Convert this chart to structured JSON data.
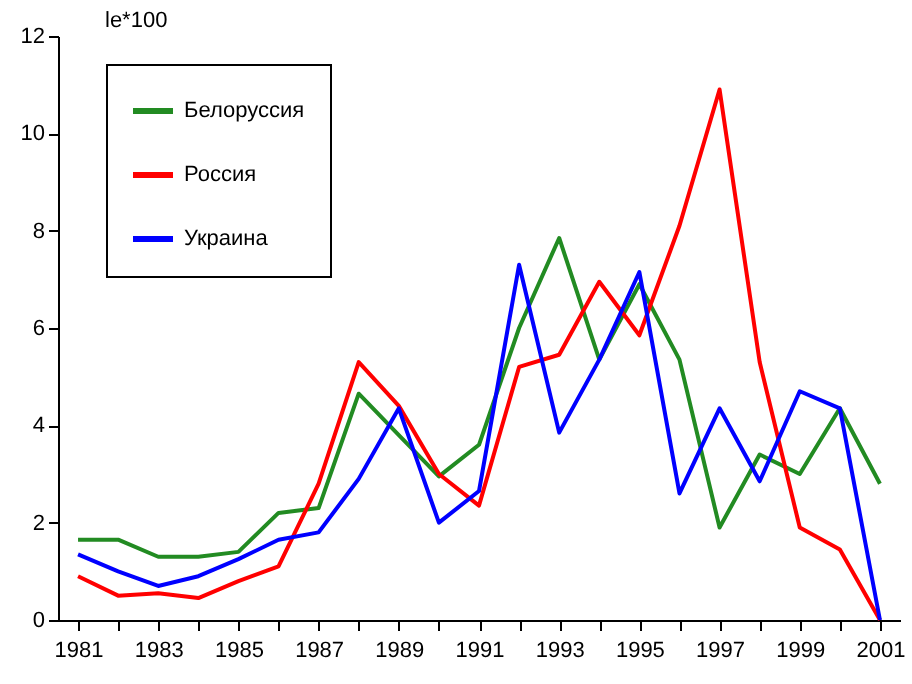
{
  "chart_data": {
    "type": "line",
    "ylabel": "le*100",
    "categories": [
      "1981",
      null,
      "1983",
      null,
      "1985",
      null,
      "1987",
      null,
      "1989",
      null,
      "1991",
      null,
      "1993",
      null,
      "1995",
      null,
      "1997",
      null,
      "1999",
      null,
      "2001"
    ],
    "series": [
      {
        "name": "Белоруссия",
        "color": "#228b22",
        "values": [
          1.65,
          1.65,
          1.3,
          1.3,
          1.4,
          2.2,
          2.3,
          4.65,
          3.8,
          2.95,
          3.6,
          6.0,
          7.85,
          5.35,
          6.9,
          5.35,
          1.9,
          3.4,
          3.0,
          4.35,
          2.8
        ]
      },
      {
        "name": "Россия",
        "color": "#ff0000",
        "values": [
          0.9,
          0.5,
          0.55,
          0.45,
          0.8,
          1.1,
          2.8,
          5.3,
          4.4,
          3.0,
          2.35,
          5.2,
          5.45,
          6.95,
          5.85,
          8.1,
          10.9,
          5.3,
          1.9,
          1.45,
          0
        ]
      },
      {
        "name": "Украина",
        "color": "#0000ff",
        "values": [
          1.35,
          1.0,
          0.7,
          0.9,
          1.25,
          1.65,
          1.8,
          2.9,
          4.35,
          2.0,
          2.65,
          7.3,
          3.85,
          5.35,
          7.15,
          2.6,
          4.35,
          2.85,
          4.7,
          4.35,
          0
        ]
      }
    ],
    "ylim": [
      0,
      12
    ],
    "yticks": [
      0,
      2,
      4,
      6,
      8,
      10,
      12
    ],
    "grid": false,
    "legend": "top left"
  }
}
